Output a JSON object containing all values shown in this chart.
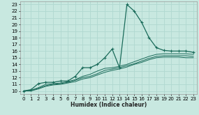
{
  "xlabel": "Humidex (Indice chaleur)",
  "xlim": [
    -0.5,
    23.5
  ],
  "ylim": [
    9.5,
    23.5
  ],
  "xticks": [
    0,
    1,
    2,
    3,
    4,
    5,
    6,
    7,
    8,
    9,
    10,
    11,
    12,
    13,
    14,
    15,
    16,
    17,
    18,
    19,
    20,
    21,
    22,
    23
  ],
  "yticks": [
    10,
    11,
    12,
    13,
    14,
    15,
    16,
    17,
    18,
    19,
    20,
    21,
    22,
    23
  ],
  "bg_color": "#c8e8e0",
  "grid_color": "#b0d8d0",
  "line_color": "#1a6b5a",
  "main_line": {
    "x": [
      0,
      1,
      2,
      3,
      4,
      5,
      6,
      7,
      8,
      9,
      10,
      11,
      12,
      13,
      14,
      15,
      16,
      17,
      18,
      19,
      20,
      21,
      22,
      23
    ],
    "y": [
      10,
      10.2,
      11.1,
      11.3,
      11.3,
      11.5,
      11.5,
      12.2,
      13.5,
      13.5,
      14.0,
      15.0,
      16.3,
      13.5,
      23.0,
      22.0,
      20.3,
      18.0,
      16.5,
      16.1,
      16.0,
      16.0,
      16.0,
      15.8
    ]
  },
  "smooth_lines": [
    {
      "x": [
        0,
        1,
        2,
        3,
        4,
        5,
        6,
        7,
        8,
        9,
        10,
        11,
        12,
        13,
        14,
        15,
        16,
        17,
        18,
        19,
        20,
        21,
        22,
        23
      ],
      "y": [
        10,
        10.1,
        10.5,
        11.0,
        11.1,
        11.2,
        11.4,
        11.7,
        12.2,
        12.5,
        13.0,
        13.4,
        13.5,
        13.7,
        14.0,
        14.4,
        14.8,
        15.2,
        15.5,
        15.6,
        15.6,
        15.6,
        15.6,
        15.5
      ]
    },
    {
      "x": [
        0,
        1,
        2,
        3,
        4,
        5,
        6,
        7,
        8,
        9,
        10,
        11,
        12,
        13,
        14,
        15,
        16,
        17,
        18,
        19,
        20,
        21,
        22,
        23
      ],
      "y": [
        10,
        10.1,
        10.4,
        10.8,
        11.0,
        11.1,
        11.3,
        11.6,
        12.0,
        12.2,
        12.6,
        13.1,
        13.3,
        13.5,
        13.8,
        14.1,
        14.5,
        14.9,
        15.2,
        15.3,
        15.3,
        15.3,
        15.3,
        15.2
      ]
    },
    {
      "x": [
        0,
        1,
        2,
        3,
        4,
        5,
        6,
        7,
        8,
        9,
        10,
        11,
        12,
        13,
        14,
        15,
        16,
        17,
        18,
        19,
        20,
        21,
        22,
        23
      ],
      "y": [
        10,
        10.0,
        10.3,
        10.7,
        10.9,
        11.0,
        11.2,
        11.4,
        11.8,
        12.0,
        12.4,
        12.8,
        13.1,
        13.3,
        13.6,
        14.0,
        14.3,
        14.7,
        15.0,
        15.1,
        15.1,
        15.1,
        15.0,
        15.0
      ]
    }
  ]
}
